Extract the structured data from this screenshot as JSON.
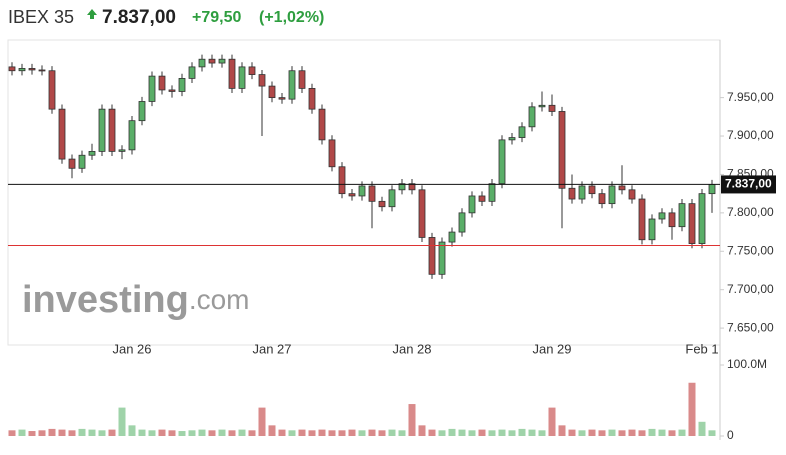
{
  "header": {
    "name": "IBEX 35",
    "price": "7.837,00",
    "change": "+79,50",
    "change_pct": "(+1,02%)"
  },
  "watermark": {
    "main": "investing",
    "suffix": ".com"
  },
  "chart_data": {
    "type": "candlestick",
    "categories": [
      null,
      null,
      null,
      null,
      null,
      null,
      null,
      null,
      null,
      null,
      null,
      null,
      "Jan 26",
      null,
      null,
      null,
      null,
      null,
      null,
      null,
      null,
      null,
      null,
      null,
      null,
      null,
      "Jan 27",
      null,
      null,
      null,
      null,
      null,
      null,
      null,
      null,
      null,
      null,
      null,
      null,
      null,
      "Jan 28",
      null,
      null,
      null,
      null,
      null,
      null,
      null,
      null,
      null,
      null,
      null,
      null,
      null,
      "Jan 29",
      null,
      null,
      null,
      null,
      null,
      null,
      null,
      null,
      null,
      null,
      null,
      null,
      null,
      null,
      "Feb 1",
      null
    ],
    "open": [
      7990,
      7985,
      7988,
      7986,
      7985,
      7935,
      7870,
      7858,
      7875,
      7880,
      7935,
      7880,
      7882,
      7920,
      7945,
      7978,
      7960,
      7958,
      7975,
      7990,
      8000,
      7995,
      8000,
      7962,
      7990,
      7980,
      7965,
      7950,
      7948,
      7985,
      7962,
      7935,
      7895,
      7860,
      7825,
      7822,
      7835,
      7815,
      7808,
      7830,
      7838,
      7830,
      7768,
      7720,
      7762,
      7775,
      7800,
      7822,
      7815,
      7838,
      7895,
      7898,
      7912,
      7938,
      7940,
      7932,
      7832,
      7818,
      7835,
      7825,
      7812,
      7835,
      7830,
      7818,
      7765,
      7792,
      7800,
      7782,
      7812,
      7760,
      7825
    ],
    "high": [
      7996,
      7994,
      7994,
      7992,
      7991,
      7941,
      7876,
      7881,
      7890,
      7941,
      7941,
      7888,
      7926,
      7951,
      7984,
      7984,
      7966,
      7981,
      7996,
      8006,
      8006,
      8006,
      8006,
      7996,
      7996,
      7986,
      7971,
      7956,
      7991,
      7991,
      7968,
      7941,
      7901,
      7866,
      7831,
      7841,
      7841,
      7821,
      7836,
      7844,
      7844,
      7836,
      7774,
      7768,
      7781,
      7806,
      7828,
      7828,
      7844,
      7901,
      7904,
      7918,
      7944,
      7958,
      7954,
      7938,
      7850,
      7841,
      7841,
      7831,
      7841,
      7862,
      7836,
      7824,
      7798,
      7806,
      7806,
      7818,
      7818,
      7831,
      7843
    ],
    "low": [
      7979,
      7979,
      7980,
      7979,
      7929,
      7864,
      7845,
      7852,
      7869,
      7874,
      7874,
      7870,
      7876,
      7914,
      7939,
      7954,
      7950,
      7952,
      7969,
      7984,
      7989,
      7989,
      7956,
      7956,
      7974,
      7900,
      7944,
      7942,
      7942,
      7956,
      7929,
      7889,
      7854,
      7819,
      7816,
      7816,
      7780,
      7802,
      7802,
      7824,
      7824,
      7762,
      7714,
      7714,
      7756,
      7769,
      7794,
      7809,
      7809,
      7832,
      7889,
      7892,
      7906,
      7932,
      7926,
      7780,
      7812,
      7812,
      7819,
      7806,
      7806,
      7824,
      7812,
      7759,
      7759,
      7786,
      7765,
      7776,
      7754,
      7754,
      7800
    ],
    "close": [
      7985,
      7988,
      7986,
      7985,
      7935,
      7870,
      7858,
      7875,
      7880,
      7935,
      7880,
      7882,
      7920,
      7945,
      7978,
      7960,
      7958,
      7975,
      7990,
      8000,
      7995,
      8000,
      7962,
      7990,
      7980,
      7965,
      7950,
      7948,
      7985,
      7962,
      7935,
      7895,
      7860,
      7825,
      7822,
      7835,
      7815,
      7808,
      7830,
      7838,
      7830,
      7768,
      7720,
      7762,
      7775,
      7800,
      7822,
      7815,
      7838,
      7895,
      7898,
      7912,
      7938,
      7940,
      7932,
      7832,
      7818,
      7835,
      7825,
      7812,
      7835,
      7830,
      7818,
      7765,
      7792,
      7800,
      7782,
      7812,
      7760,
      7825,
      7837
    ],
    "ylim": [
      7628,
      8025
    ],
    "yticks": [
      {
        "value": 7950,
        "label": "7.950,00"
      },
      {
        "value": 7900,
        "label": "7.900,00"
      },
      {
        "value": 7850,
        "label": "7.850,00"
      },
      {
        "value": 7800,
        "label": "7.800,00"
      },
      {
        "value": 7750,
        "label": "7.750,00"
      },
      {
        "value": 7700,
        "label": "7.700,00"
      },
      {
        "value": 7650,
        "label": "7.650,00"
      }
    ],
    "current_price": {
      "value": 7837,
      "label": "7.837,00"
    },
    "previous_close": 7757.5,
    "up_color": "#5aae68",
    "down_color": "#b04848",
    "volume": {
      "values": [
        8,
        9,
        7,
        8,
        10,
        9,
        8,
        10,
        9,
        8,
        9,
        40,
        15,
        9,
        8,
        9,
        8,
        7,
        8,
        9,
        8,
        9,
        8,
        9,
        8,
        40,
        15,
        9,
        8,
        9,
        8,
        9,
        8,
        8,
        9,
        8,
        9,
        8,
        9,
        8,
        45,
        15,
        9,
        8,
        10,
        9,
        8,
        9,
        8,
        9,
        8,
        10,
        9,
        8,
        40,
        15,
        9,
        8,
        9,
        8,
        9,
        8,
        9,
        8,
        10,
        9,
        8,
        9,
        75,
        20,
        8
      ],
      "ylim": [
        0,
        100
      ],
      "yticks": [
        {
          "value": 100,
          "label": "100.0M"
        },
        0
      ],
      "up_color": "#9fd3a9",
      "down_color": "#d98a8a"
    }
  }
}
